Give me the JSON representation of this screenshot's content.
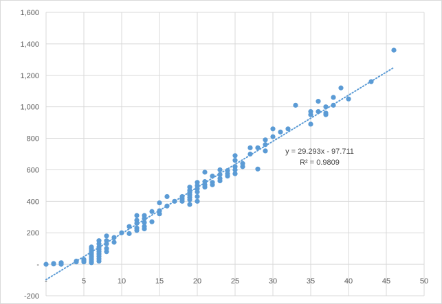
{
  "chart_data": {
    "type": "scatter",
    "title": "",
    "xlabel": "",
    "ylabel": "",
    "xlim": [
      0,
      50
    ],
    "ylim": [
      -200,
      1600
    ],
    "xticks": [
      0,
      5,
      10,
      15,
      20,
      25,
      30,
      35,
      40,
      45,
      50
    ],
    "xtick_labels": [
      "-",
      "5",
      "10",
      "15",
      "20",
      "25",
      "30",
      "35",
      "40",
      "45",
      "50"
    ],
    "yticks": [
      -200,
      0,
      200,
      400,
      600,
      800,
      1000,
      1200,
      1400,
      1600
    ],
    "ytick_labels": [
      "-200",
      "-",
      "200",
      "400",
      "600",
      "800",
      "1,000",
      "1,200",
      "1,400",
      "1,600"
    ],
    "grid": "major gridlines on both axes",
    "marker_color": "#5b9bd5",
    "trendline": {
      "type": "linear",
      "slope": 29.293,
      "intercept": -97.711,
      "x_range": [
        0,
        46
      ],
      "style": "dotted",
      "color": "#5b9bd5"
    },
    "annotations": [
      "y = 29.293x - 97.711",
      "R² = 0.9809"
    ],
    "points": [
      [
        0,
        0
      ],
      [
        1,
        5
      ],
      [
        1,
        2
      ],
      [
        2,
        10
      ],
      [
        2,
        5
      ],
      [
        2,
        0
      ],
      [
        4,
        20
      ],
      [
        4,
        15
      ],
      [
        5,
        30
      ],
      [
        5,
        25
      ],
      [
        5,
        15
      ],
      [
        6,
        110
      ],
      [
        6,
        100
      ],
      [
        6,
        90
      ],
      [
        6,
        80
      ],
      [
        6,
        70
      ],
      [
        6,
        60
      ],
      [
        6,
        50
      ],
      [
        6,
        40
      ],
      [
        6,
        30
      ],
      [
        6,
        20
      ],
      [
        6,
        10
      ],
      [
        7,
        150
      ],
      [
        7,
        130
      ],
      [
        7,
        110
      ],
      [
        7,
        95
      ],
      [
        7,
        80
      ],
      [
        7,
        65
      ],
      [
        7,
        50
      ],
      [
        7,
        35
      ],
      [
        7,
        20
      ],
      [
        8,
        180
      ],
      [
        8,
        150
      ],
      [
        8,
        130
      ],
      [
        8,
        100
      ],
      [
        8,
        80
      ],
      [
        9,
        170
      ],
      [
        9,
        140
      ],
      [
        10,
        200
      ],
      [
        11,
        240
      ],
      [
        11,
        195
      ],
      [
        12,
        310
      ],
      [
        12,
        280
      ],
      [
        12,
        260
      ],
      [
        12,
        230
      ],
      [
        12,
        215
      ],
      [
        13,
        310
      ],
      [
        13,
        290
      ],
      [
        13,
        265
      ],
      [
        13,
        240
      ],
      [
        13,
        225
      ],
      [
        14,
        335
      ],
      [
        14,
        270
      ],
      [
        15,
        390
      ],
      [
        15,
        340
      ],
      [
        15,
        320
      ],
      [
        16,
        430
      ],
      [
        16,
        370
      ],
      [
        17,
        400
      ],
      [
        18,
        430
      ],
      [
        18,
        415
      ],
      [
        18,
        400
      ],
      [
        19,
        490
      ],
      [
        19,
        470
      ],
      [
        19,
        455
      ],
      [
        19,
        440
      ],
      [
        19,
        425
      ],
      [
        19,
        410
      ],
      [
        19,
        380
      ],
      [
        20,
        520
      ],
      [
        20,
        500
      ],
      [
        20,
        480
      ],
      [
        20,
        460
      ],
      [
        20,
        430
      ],
      [
        20,
        400
      ],
      [
        21,
        585
      ],
      [
        21,
        525
      ],
      [
        21,
        505
      ],
      [
        21,
        490
      ],
      [
        22,
        560
      ],
      [
        22,
        520
      ],
      [
        22,
        505
      ],
      [
        23,
        600
      ],
      [
        23,
        570
      ],
      [
        23,
        545
      ],
      [
        23,
        530
      ],
      [
        24,
        595
      ],
      [
        24,
        575
      ],
      [
        24,
        560
      ],
      [
        25,
        690
      ],
      [
        25,
        660
      ],
      [
        25,
        620
      ],
      [
        25,
        600
      ],
      [
        25,
        575
      ],
      [
        26,
        640
      ],
      [
        26,
        620
      ],
      [
        27,
        740
      ],
      [
        27,
        700
      ],
      [
        28,
        740
      ],
      [
        28,
        605
      ],
      [
        29,
        790
      ],
      [
        29,
        760
      ],
      [
        29,
        720
      ],
      [
        30,
        860
      ],
      [
        30,
        810
      ],
      [
        31,
        840
      ],
      [
        32,
        860
      ],
      [
        33,
        1010
      ],
      [
        35,
        970
      ],
      [
        35,
        950
      ],
      [
        35,
        890
      ],
      [
        36,
        1035
      ],
      [
        36,
        970
      ],
      [
        37,
        1000
      ],
      [
        37,
        960
      ],
      [
        37,
        950
      ],
      [
        38,
        1060
      ],
      [
        38,
        1010
      ],
      [
        39,
        1120
      ],
      [
        40,
        1050
      ],
      [
        43,
        1160
      ],
      [
        46,
        1360
      ]
    ]
  }
}
